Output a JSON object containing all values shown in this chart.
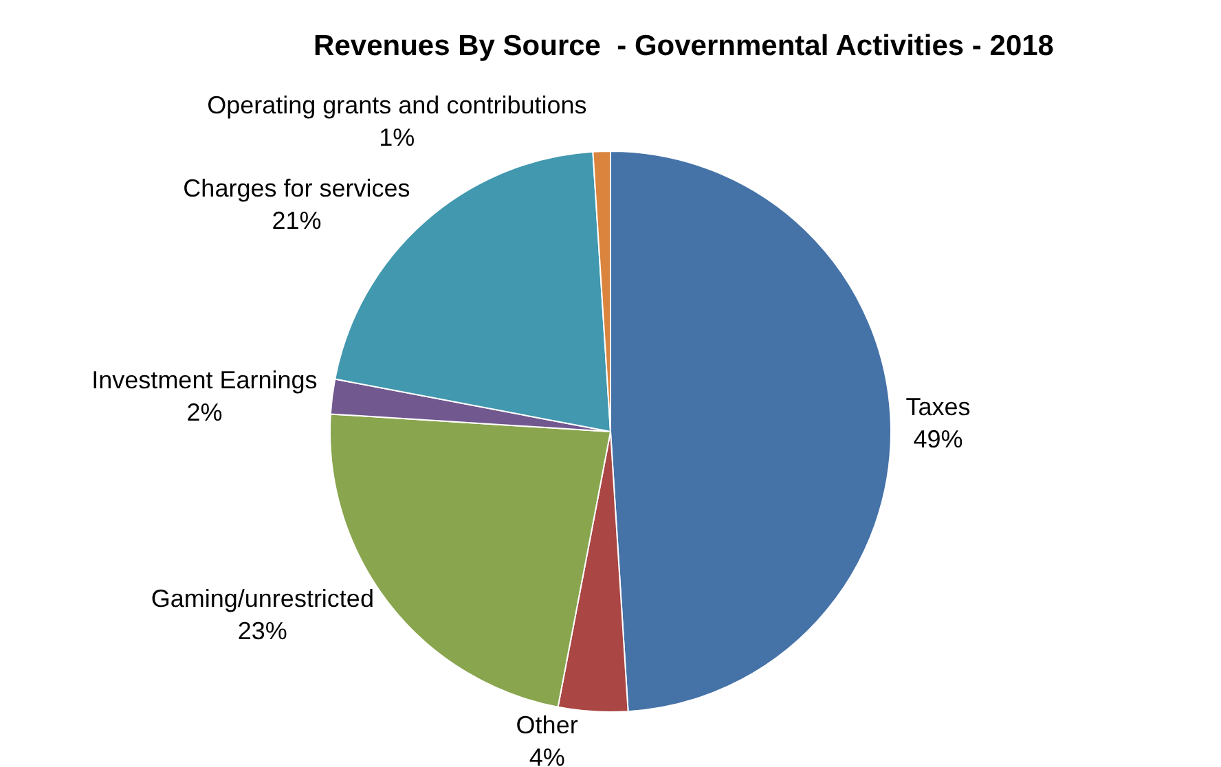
{
  "chart_data": {
    "type": "pie",
    "title": "Revenues By Source  - Governmental Activities - 2018",
    "categories": [
      "Taxes",
      "Other",
      "Gaming/unrestricted",
      "Investment Earnings",
      "Charges for services",
      "Operating grants and contributions"
    ],
    "values": [
      49,
      4,
      23,
      2,
      21,
      1
    ],
    "value_labels": [
      "49%",
      "4%",
      "23%",
      "2%",
      "21%",
      "1%"
    ],
    "colors": [
      "#4572a7",
      "#aa4643",
      "#89a54e",
      "#71588f",
      "#4198af",
      "#db843d"
    ],
    "legend": false
  }
}
